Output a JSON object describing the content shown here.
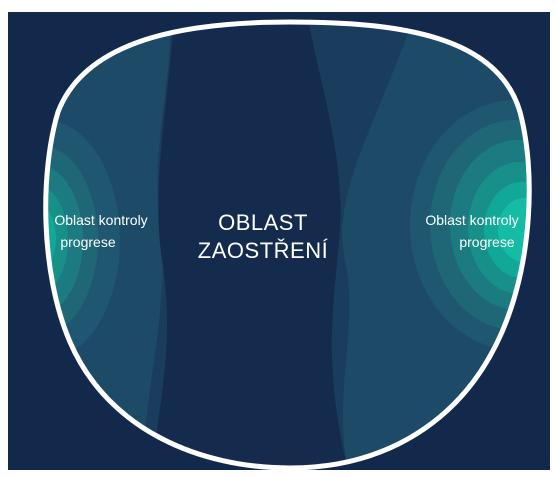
{
  "left_label": [
    "Oblast kontroly",
    "progrese"
  ],
  "center_label": [
    "OBLAST",
    "ZAOSTŘENÍ"
  ],
  "right_label": [
    "Oblast kontroly",
    "progrese"
  ]
}
